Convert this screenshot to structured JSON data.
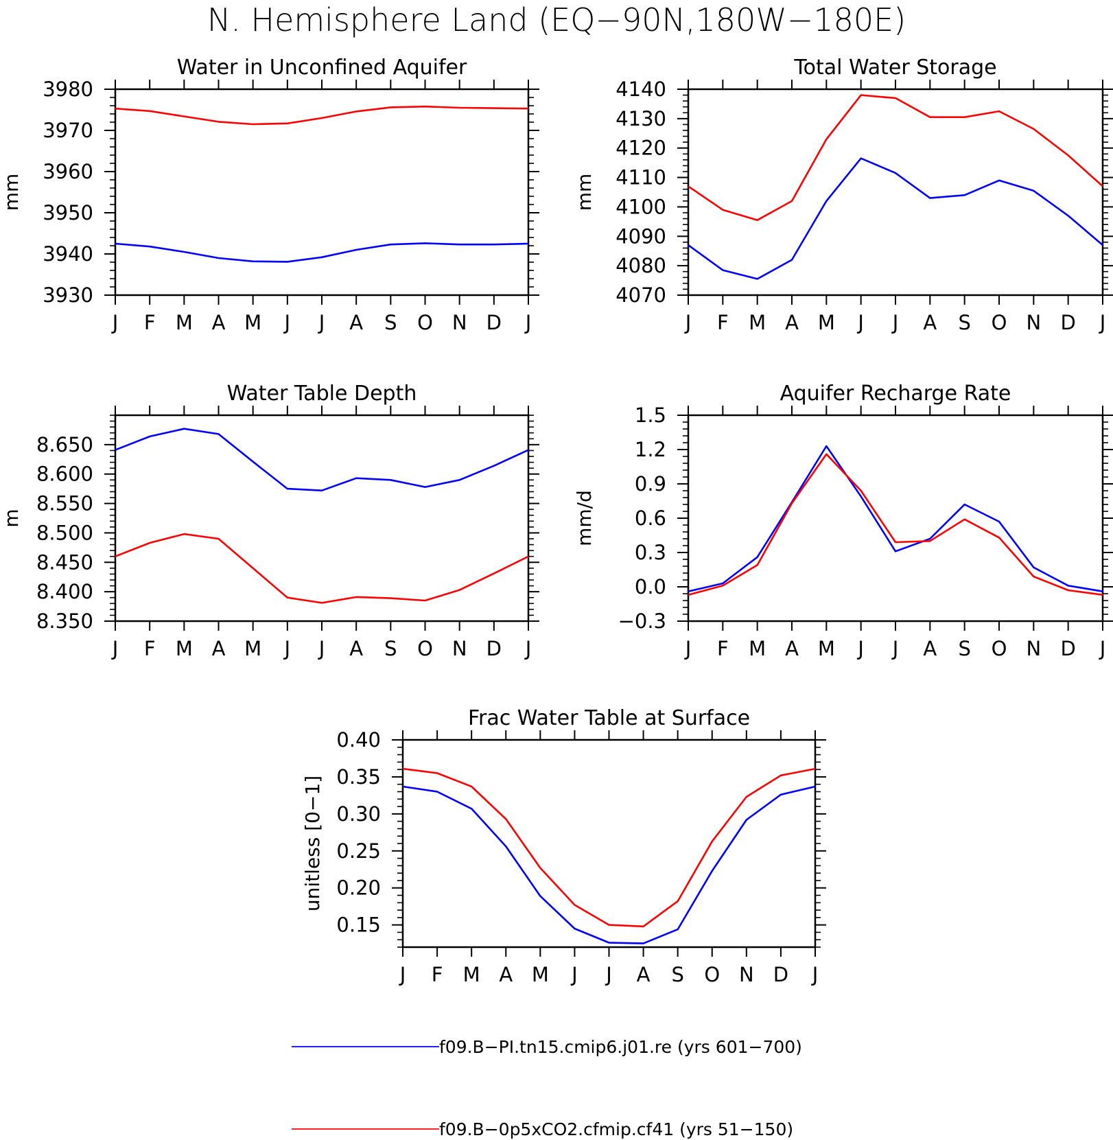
{
  "figure_title": "N. Hemisphere Land (EQ−90N,180W−180E)",
  "legend": [
    {
      "label": "f09.B−PI.tn15.cmip6.j01.re (yrs 601−700)",
      "color": "#0000ff"
    },
    {
      "label": "f09.B−0p5xCO2.cfmip.cf41 (yrs 51−150)",
      "color": "#ff0000"
    }
  ],
  "chart_data": [
    {
      "type": "line",
      "title": "Water in Unconfined Aquifer",
      "ylabel": "mm",
      "xlabel": "",
      "x": [
        "J",
        "F",
        "M",
        "A",
        "M",
        "J",
        "J",
        "A",
        "S",
        "O",
        "N",
        "D",
        "J"
      ],
      "ylim": [
        3930,
        3980
      ],
      "yticks": [
        3930,
        3940,
        3950,
        3960,
        3970,
        3980
      ],
      "ytick_labels": [
        "3930",
        "3940",
        "3950",
        "3960",
        "3970",
        "3980"
      ],
      "grid": false,
      "series": [
        {
          "color": "#0000ff",
          "values": [
            3942.5,
            3941.8,
            3940.5,
            3939.0,
            3938.2,
            3938.1,
            3939.2,
            3941.0,
            3942.3,
            3942.6,
            3942.3,
            3942.3,
            3942.5
          ]
        },
        {
          "color": "#ff0000",
          "values": [
            3975.3,
            3974.7,
            3973.4,
            3972.1,
            3971.5,
            3971.7,
            3973.0,
            3974.6,
            3975.6,
            3975.8,
            3975.5,
            3975.4,
            3975.3
          ]
        }
      ]
    },
    {
      "type": "line",
      "title": "Total Water Storage",
      "ylabel": "mm",
      "xlabel": "",
      "x": [
        "J",
        "F",
        "M",
        "A",
        "M",
        "J",
        "J",
        "A",
        "S",
        "O",
        "N",
        "D",
        "J"
      ],
      "ylim": [
        4070,
        4140
      ],
      "yticks": [
        4070,
        4080,
        4090,
        4100,
        4110,
        4120,
        4130,
        4140
      ],
      "ytick_labels": [
        "4070",
        "4080",
        "4090",
        "4100",
        "4110",
        "4120",
        "4130",
        "4140"
      ],
      "grid": false,
      "series": [
        {
          "color": "#0000ff",
          "values": [
            4087,
            4078.5,
            4075.5,
            4082,
            4102,
            4116.5,
            4111.5,
            4103,
            4104,
            4109,
            4105.5,
            4097,
            4087
          ]
        },
        {
          "color": "#ff0000",
          "values": [
            4107,
            4099,
            4095.5,
            4102,
            4123,
            4138,
            4137,
            4130.5,
            4130.5,
            4132.5,
            4126.5,
            4117.5,
            4107
          ]
        }
      ]
    },
    {
      "type": "line",
      "title": "Water Table Depth",
      "ylabel": "m",
      "xlabel": "",
      "x": [
        "J",
        "F",
        "M",
        "A",
        "M",
        "J",
        "J",
        "A",
        "S",
        "O",
        "N",
        "D",
        "J"
      ],
      "ylim": [
        8.35,
        8.7
      ],
      "yticks": [
        8.35,
        8.4,
        8.45,
        8.5,
        8.55,
        8.6,
        8.65
      ],
      "ytick_labels": [
        "8.350",
        "8.400",
        "8.450",
        "8.500",
        "8.550",
        "8.600",
        "8.650"
      ],
      "grid": false,
      "series": [
        {
          "color": "#0000ff",
          "values": [
            8.641,
            8.664,
            8.677,
            8.668,
            8.621,
            8.575,
            8.572,
            8.593,
            8.59,
            8.578,
            8.59,
            8.614,
            8.641
          ]
        },
        {
          "color": "#ff0000",
          "values": [
            8.46,
            8.483,
            8.498,
            8.49,
            8.44,
            8.39,
            8.381,
            8.391,
            8.389,
            8.385,
            8.403,
            8.431,
            8.46
          ]
        }
      ]
    },
    {
      "type": "line",
      "title": "Aquifer Recharge Rate",
      "ylabel": "mm/d",
      "xlabel": "",
      "x": [
        "J",
        "F",
        "M",
        "A",
        "M",
        "J",
        "J",
        "A",
        "S",
        "O",
        "N",
        "D",
        "J"
      ],
      "ylim": [
        -0.3,
        1.5
      ],
      "yticks": [
        -0.3,
        0.0,
        0.3,
        0.6,
        0.9,
        1.2,
        1.5
      ],
      "ytick_labels": [
        "−0.3",
        "0.0",
        "0.3",
        "0.6",
        "0.9",
        "1.2",
        "1.5"
      ],
      "grid": false,
      "series": [
        {
          "color": "#0000ff",
          "values": [
            -0.04,
            0.03,
            0.26,
            0.74,
            1.23,
            0.79,
            0.31,
            0.42,
            0.72,
            0.57,
            0.17,
            0.01,
            -0.04
          ]
        },
        {
          "color": "#ff0000",
          "values": [
            -0.07,
            0.01,
            0.19,
            0.73,
            1.16,
            0.84,
            0.39,
            0.4,
            0.59,
            0.43,
            0.09,
            -0.03,
            -0.07
          ]
        }
      ]
    },
    {
      "type": "line",
      "title": "Frac Water Table at Surface",
      "ylabel": "unitless [0−1]",
      "xlabel": "",
      "x": [
        "J",
        "F",
        "M",
        "A",
        "M",
        "J",
        "J",
        "A",
        "S",
        "O",
        "N",
        "D",
        "J"
      ],
      "ylim": [
        0.12,
        0.4
      ],
      "yticks": [
        0.15,
        0.2,
        0.25,
        0.3,
        0.35,
        0.4
      ],
      "ytick_labels": [
        "0.15",
        "0.20",
        "0.25",
        "0.30",
        "0.35",
        "0.40"
      ],
      "grid": false,
      "series": [
        {
          "color": "#0000ff",
          "values": [
            0.337,
            0.33,
            0.307,
            0.256,
            0.189,
            0.145,
            0.126,
            0.125,
            0.144,
            0.223,
            0.292,
            0.326,
            0.337
          ]
        },
        {
          "color": "#ff0000",
          "values": [
            0.361,
            0.355,
            0.337,
            0.293,
            0.227,
            0.177,
            0.15,
            0.148,
            0.182,
            0.263,
            0.323,
            0.352,
            0.361
          ]
        }
      ]
    }
  ]
}
